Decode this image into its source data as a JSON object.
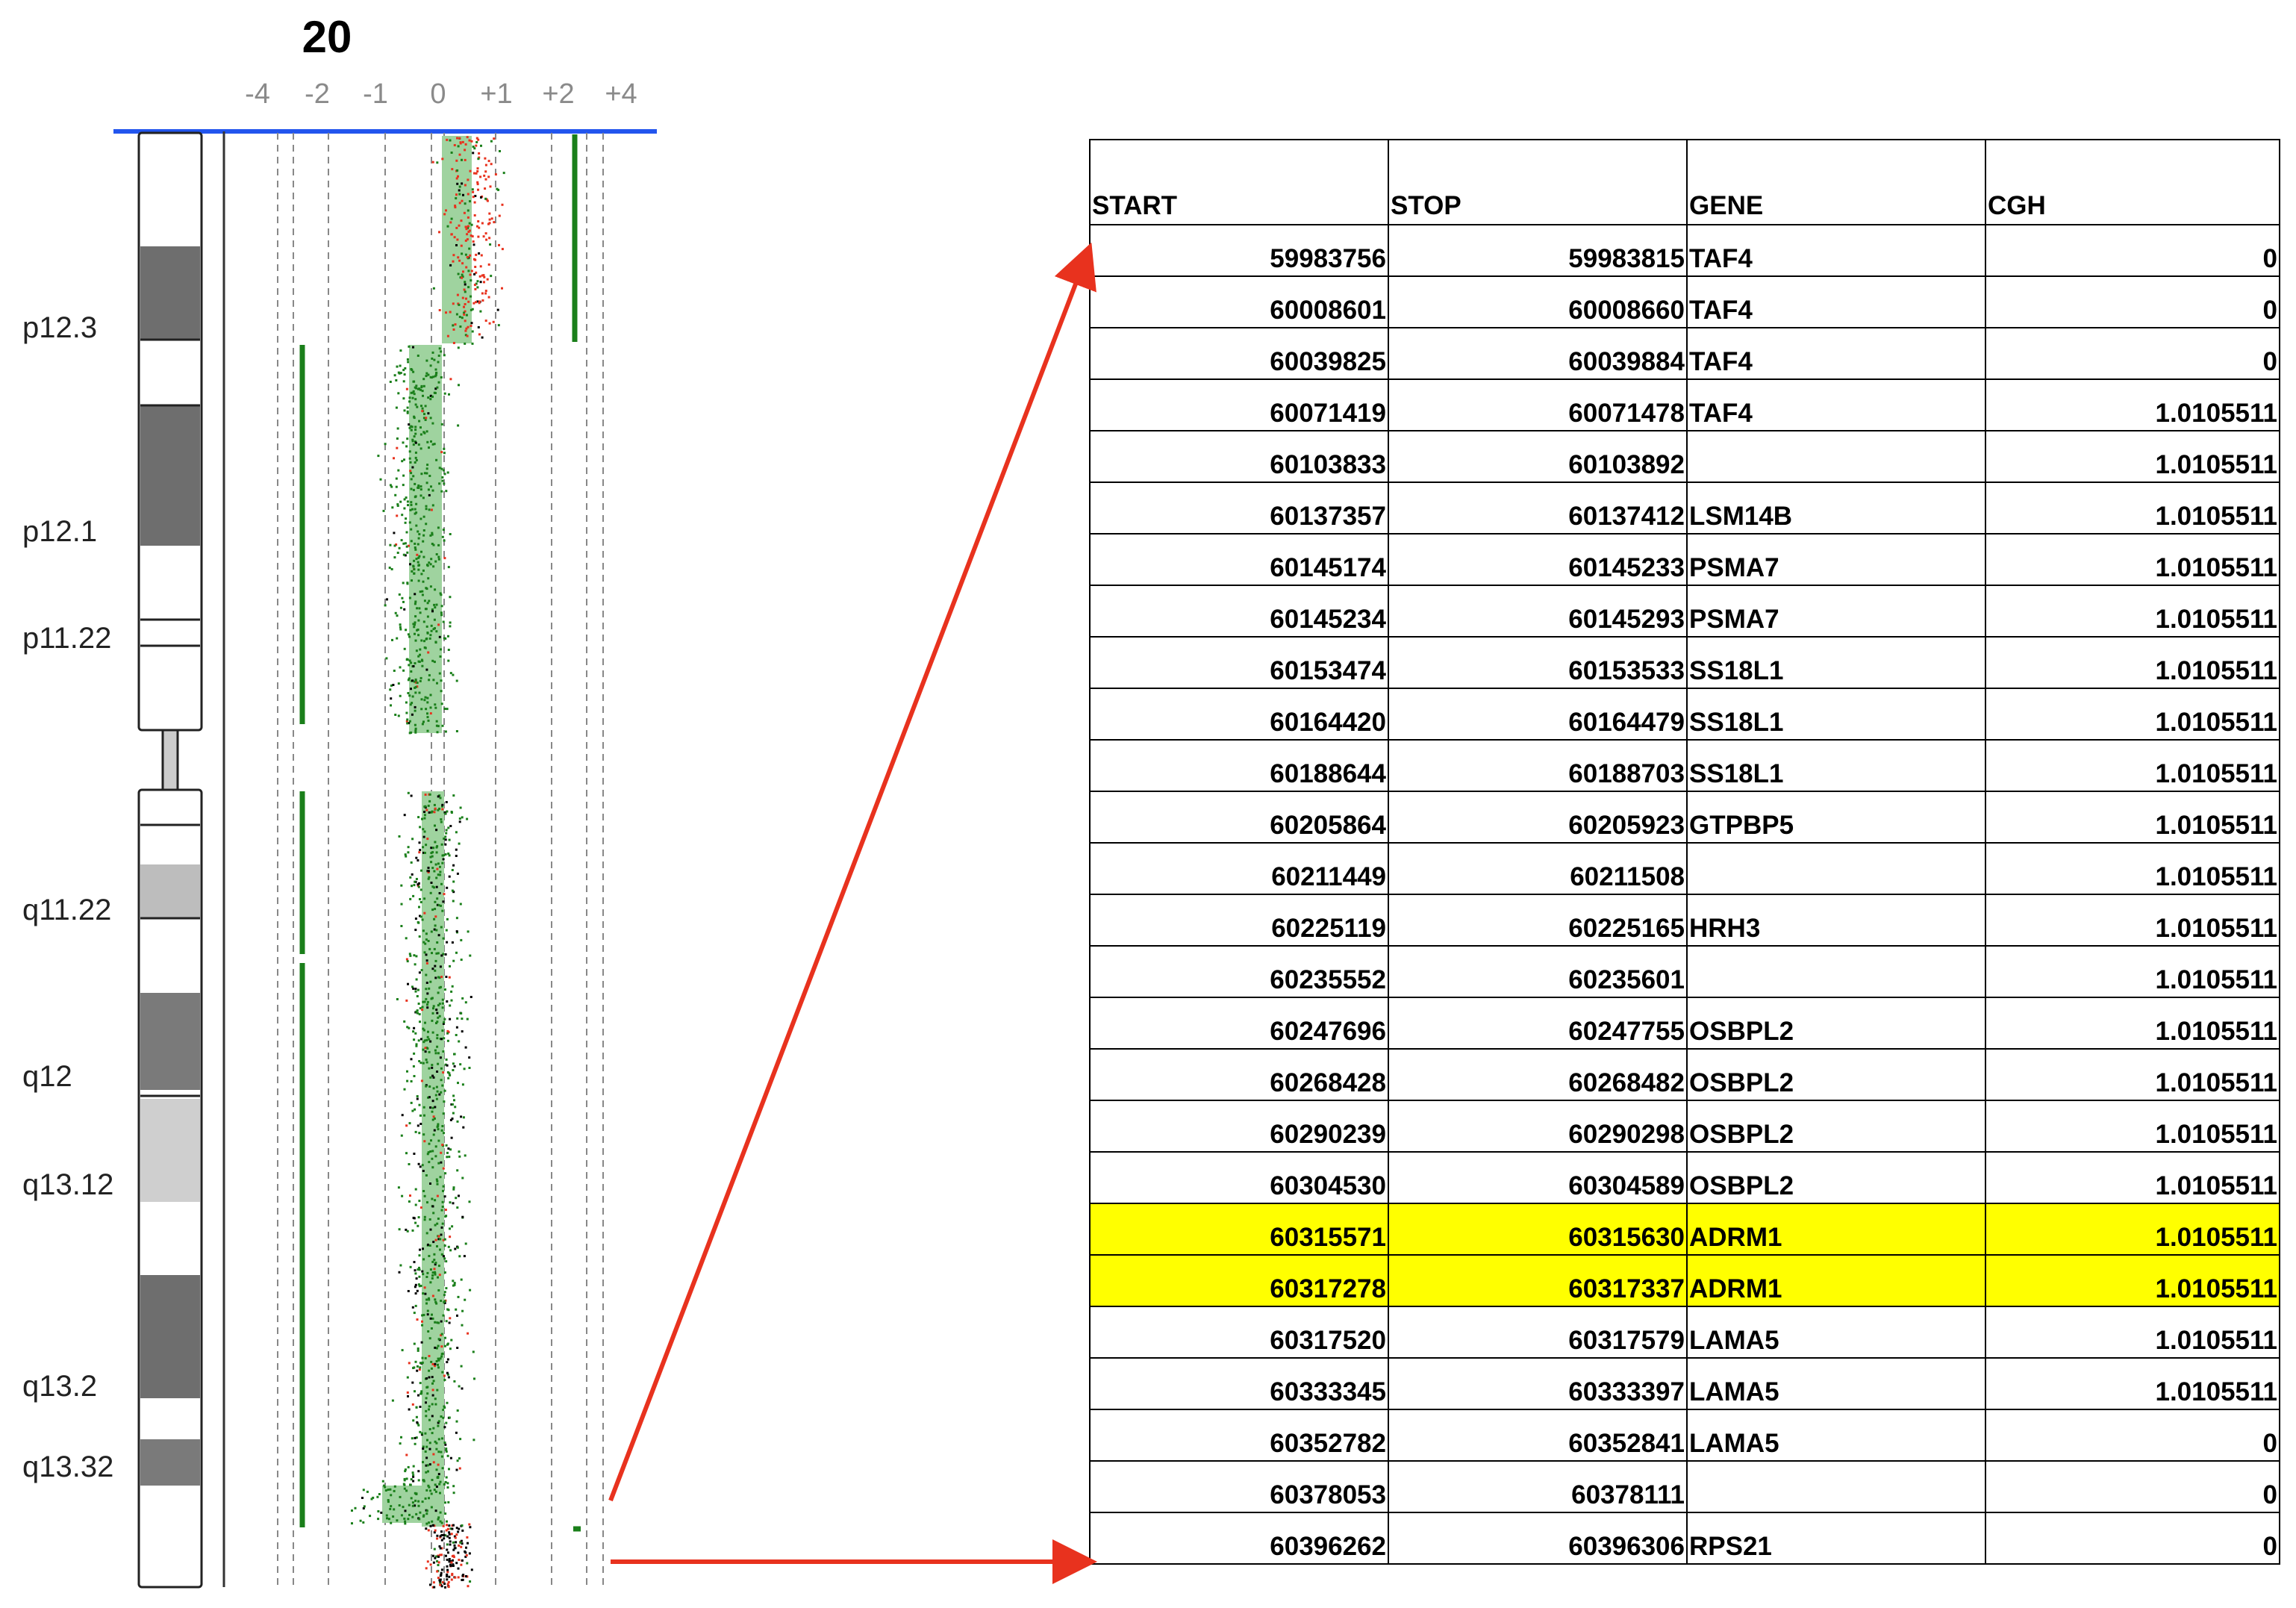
{
  "chromosome": {
    "title": "20",
    "axis_ticks": [
      "-4",
      "-2",
      "-1",
      "0",
      "+1",
      "+2",
      "+4"
    ],
    "band_labels": [
      "p12.3",
      "p12.1",
      "p11.22",
      "q11.22",
      "q12",
      "q13.12",
      "q13.2",
      "q13.32"
    ]
  },
  "colors": {
    "loss": "#1a7f1a",
    "gain": "#e8321e",
    "neutral": "#000000",
    "shade": "#9fd39f",
    "axis_line": "#2255ee",
    "arrow": "#e8321e",
    "highlight": "#ffff00"
  },
  "table": {
    "headers": [
      "START",
      "STOP",
      "GENE",
      "CGH"
    ],
    "rows": [
      {
        "start": "59983756",
        "stop": "59983815",
        "gene": "TAF4",
        "cgh": "0"
      },
      {
        "start": "60008601",
        "stop": "60008660",
        "gene": "TAF4",
        "cgh": "0"
      },
      {
        "start": "60039825",
        "stop": "60039884",
        "gene": "TAF4",
        "cgh": "0"
      },
      {
        "start": "60071419",
        "stop": "60071478",
        "gene": "TAF4",
        "cgh": "1.0105511"
      },
      {
        "start": "60103833",
        "stop": "60103892",
        "gene": "",
        "cgh": "1.0105511"
      },
      {
        "start": "60137357",
        "stop": "60137412",
        "gene": "LSM14B",
        "cgh": "1.0105511"
      },
      {
        "start": "60145174",
        "stop": "60145233",
        "gene": "PSMA7",
        "cgh": "1.0105511"
      },
      {
        "start": "60145234",
        "stop": "60145293",
        "gene": "PSMA7",
        "cgh": "1.0105511"
      },
      {
        "start": "60153474",
        "stop": "60153533",
        "gene": "SS18L1",
        "cgh": "1.0105511"
      },
      {
        "start": "60164420",
        "stop": "60164479",
        "gene": "SS18L1",
        "cgh": "1.0105511"
      },
      {
        "start": "60188644",
        "stop": "60188703",
        "gene": "SS18L1",
        "cgh": "1.0105511"
      },
      {
        "start": "60205864",
        "stop": "60205923",
        "gene": "GTPBP5",
        "cgh": "1.0105511"
      },
      {
        "start": "60211449",
        "stop": "60211508",
        "gene": "",
        "cgh": "1.0105511"
      },
      {
        "start": "60225119",
        "stop": "60225165",
        "gene": "HRH3",
        "cgh": "1.0105511"
      },
      {
        "start": "60235552",
        "stop": "60235601",
        "gene": "",
        "cgh": "1.0105511"
      },
      {
        "start": "60247696",
        "stop": "60247755",
        "gene": "OSBPL2",
        "cgh": "1.0105511"
      },
      {
        "start": "60268428",
        "stop": "60268482",
        "gene": "OSBPL2",
        "cgh": "1.0105511"
      },
      {
        "start": "60290239",
        "stop": "60290298",
        "gene": "OSBPL2",
        "cgh": "1.0105511"
      },
      {
        "start": "60304530",
        "stop": "60304589",
        "gene": "OSBPL2",
        "cgh": "1.0105511"
      },
      {
        "start": "60315571",
        "stop": "60315630",
        "gene": "ADRM1",
        "cgh": "1.0105511",
        "highlight": true
      },
      {
        "start": "60317278",
        "stop": "60317337",
        "gene": "ADRM1",
        "cgh": "1.0105511",
        "highlight": true
      },
      {
        "start": "60317520",
        "stop": "60317579",
        "gene": "LAMA5",
        "cgh": "1.0105511"
      },
      {
        "start": "60333345",
        "stop": "60333397",
        "gene": "LAMA5",
        "cgh": "1.0105511"
      },
      {
        "start": "60352782",
        "stop": "60352841",
        "gene": "LAMA5",
        "cgh": "0"
      },
      {
        "start": "60378053",
        "stop": "60378111",
        "gene": "",
        "cgh": "0"
      },
      {
        "start": "60396262",
        "stop": "60396306",
        "gene": "RPS21",
        "cgh": "0"
      }
    ]
  }
}
